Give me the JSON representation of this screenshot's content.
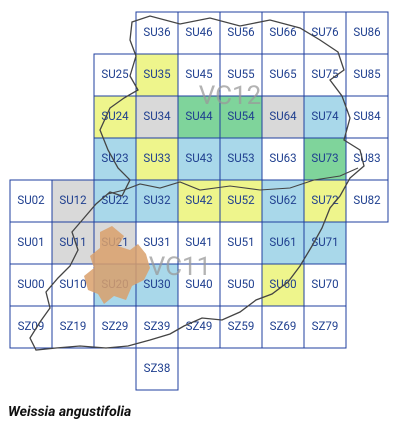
{
  "map": {
    "caption": "Weissia angustifolia",
    "vice_counties": [
      "VC12",
      "VC11"
    ],
    "rows": [
      [
        null,
        null,
        null,
        {
          "label": "SU36",
          "color": "#ffffff"
        },
        {
          "label": "SU46",
          "color": "#ffffff"
        },
        {
          "label": "SU56",
          "color": "#ffffff"
        },
        {
          "label": "SU66",
          "color": "#ffffff"
        },
        {
          "label": "SU76",
          "color": "#ffffff"
        },
        {
          "label": "SU86",
          "color": "#ffffff"
        }
      ],
      [
        null,
        null,
        {
          "label": "SU25",
          "color": "#ffffff"
        },
        {
          "label": "SU35",
          "color": "#eef58c"
        },
        {
          "label": "SU45",
          "color": "#ffffff"
        },
        {
          "label": "SU55",
          "color": "#ffffff"
        },
        {
          "label": "SU65",
          "color": "#ffffff"
        },
        {
          "label": "SU75",
          "color": "#ffffff"
        },
        {
          "label": "SU85",
          "color": "#ffffff"
        }
      ],
      [
        null,
        null,
        {
          "label": "SU24",
          "color": "#eef58c"
        },
        {
          "label": "SU34",
          "color": "#d9d9d9"
        },
        {
          "label": "SU44",
          "color": "#7fd49b"
        },
        {
          "label": "SU54",
          "color": "#7fd49b"
        },
        {
          "label": "SU64",
          "color": "#d9d9d9"
        },
        {
          "label": "SU74",
          "color": "#a9d8ea"
        },
        {
          "label": "SU84",
          "color": "#ffffff"
        }
      ],
      [
        null,
        null,
        {
          "label": "SU23",
          "color": "#a9d8ea"
        },
        {
          "label": "SU33",
          "color": "#eef58c"
        },
        {
          "label": "SU43",
          "color": "#a9d8ea"
        },
        {
          "label": "SU53",
          "color": "#a9d8ea"
        },
        {
          "label": "SU63",
          "color": "#ffffff"
        },
        {
          "label": "SU73",
          "color": "#7fd49b"
        },
        {
          "label": "SU83",
          "color": "#ffffff"
        }
      ],
      [
        {
          "label": "SU02",
          "color": "#ffffff"
        },
        {
          "label": "SU12",
          "color": "#d9d9d9"
        },
        {
          "label": "SU22",
          "color": "#a9d8ea"
        },
        {
          "label": "SU32",
          "color": "#a9d8ea"
        },
        {
          "label": "SU42",
          "color": "#eef58c"
        },
        {
          "label": "SU52",
          "color": "#eef58c"
        },
        {
          "label": "SU62",
          "color": "#a9d8ea"
        },
        {
          "label": "SU72",
          "color": "#eef58c"
        },
        {
          "label": "SU82",
          "color": "#ffffff"
        }
      ],
      [
        {
          "label": "SU01",
          "color": "#ffffff"
        },
        {
          "label": "SU11",
          "color": "#d9d9d9"
        },
        {
          "label": "SU21",
          "color": "#d9d9d9"
        },
        {
          "label": "SU31",
          "color": "#ffffff"
        },
        {
          "label": "SU41",
          "color": "#ffffff"
        },
        {
          "label": "SU51",
          "color": "#ffffff"
        },
        {
          "label": "SU61",
          "color": "#a9d8ea"
        },
        {
          "label": "SU71",
          "color": "#a9d8ea"
        },
        null
      ],
      [
        {
          "label": "SU00",
          "color": "#ffffff"
        },
        {
          "label": "SU10",
          "color": "#ffffff"
        },
        {
          "label": "SU20",
          "color": "#a9d8ea"
        },
        {
          "label": "SU30",
          "color": "#a9d8ea"
        },
        {
          "label": "SU40",
          "color": "#ffffff"
        },
        {
          "label": "SU50",
          "color": "#ffffff"
        },
        {
          "label": "SU60",
          "color": "#eef58c"
        },
        {
          "label": "SU70",
          "color": "#ffffff"
        },
        null
      ],
      [
        {
          "label": "SZ09",
          "color": "#ffffff"
        },
        {
          "label": "SZ19",
          "color": "#ffffff"
        },
        {
          "label": "SZ29",
          "color": "#ffffff"
        },
        {
          "label": "SZ39",
          "color": "#ffffff"
        },
        {
          "label": "SZ49",
          "color": "#ffffff"
        },
        {
          "label": "SZ59",
          "color": "#ffffff"
        },
        {
          "label": "SZ69",
          "color": "#ffffff"
        },
        {
          "label": "SZ79",
          "color": "#ffffff"
        },
        null
      ],
      [
        null,
        null,
        null,
        {
          "label": "SZ38",
          "color": "#ffffff"
        },
        null,
        null,
        null,
        null,
        null
      ]
    ]
  }
}
